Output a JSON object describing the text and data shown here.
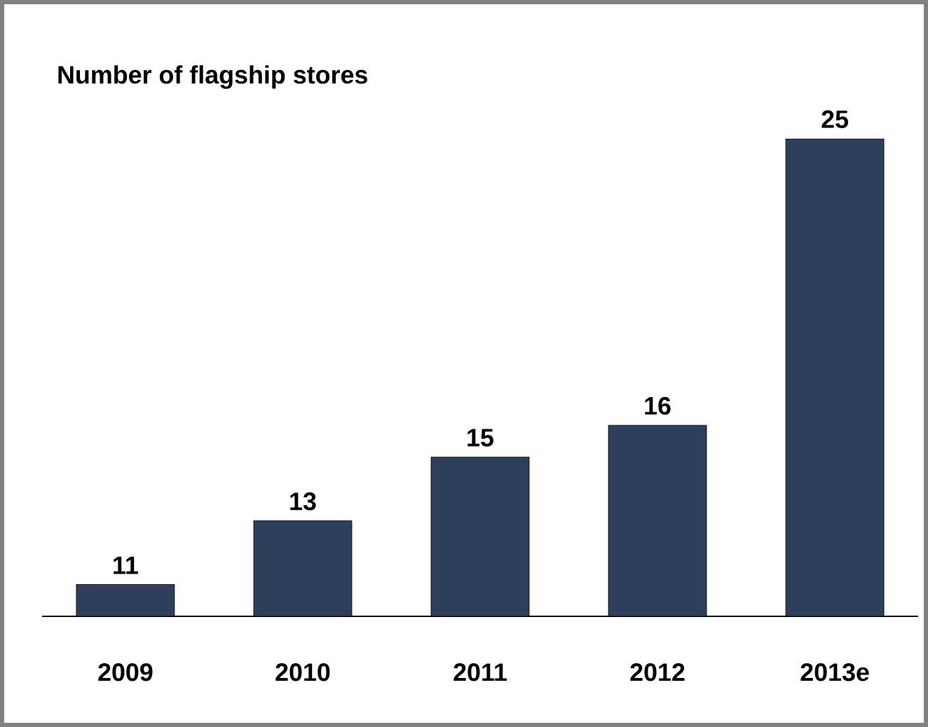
{
  "chart_data": {
    "type": "bar",
    "title": "Number of flagship stores",
    "categories": [
      "2009",
      "2010",
      "2011",
      "2012",
      "2013e"
    ],
    "values": [
      11,
      13,
      15,
      16,
      25
    ],
    "color": "#2e3f5c",
    "ylim": [
      10,
      25
    ],
    "data_labels": true
  }
}
